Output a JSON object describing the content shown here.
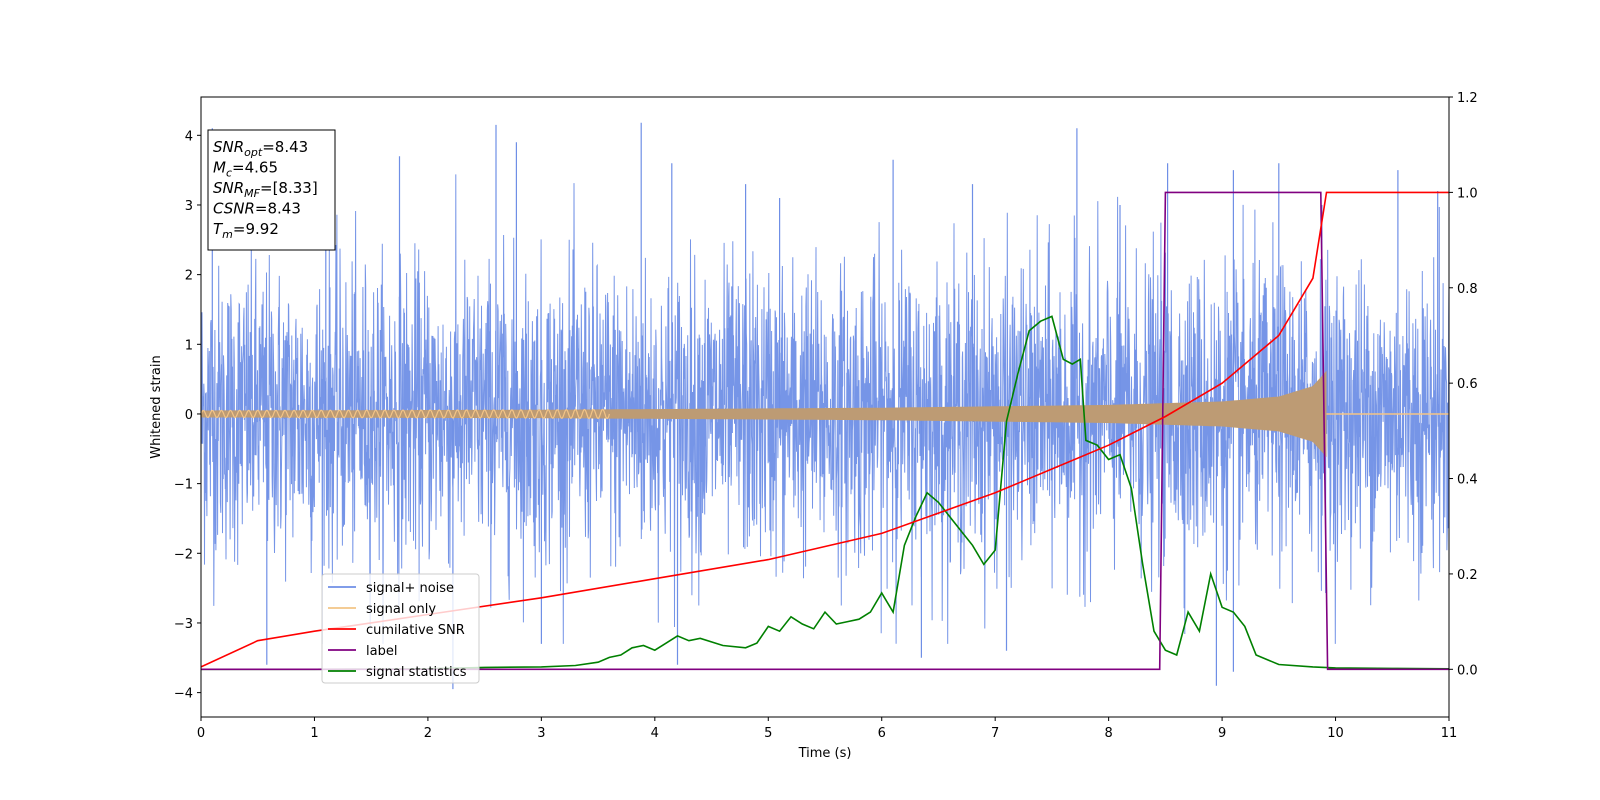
{
  "chart_data": {
    "type": "line",
    "xlabel": "Time (s)",
    "ylabel": "Whitened strain",
    "xlim": [
      0,
      11
    ],
    "ylim_left": [
      -4.35,
      4.55
    ],
    "ylim_right": [
      -0.1,
      1.2
    ],
    "xticks": [
      0,
      1,
      2,
      3,
      4,
      5,
      6,
      7,
      8,
      9,
      10,
      11
    ],
    "yticks_left": [
      -4,
      -3,
      -2,
      -1,
      0,
      1,
      2,
      3,
      4
    ],
    "yticks_right": [
      0.0,
      0.2,
      0.4,
      0.6,
      0.8,
      1.0,
      1.2
    ],
    "yticks_right_labels": [
      "0.0",
      "0.2",
      "0.4",
      "0.6",
      "0.8",
      "1.0",
      "1.2"
    ],
    "annotation": {
      "lines": [
        {
          "var": "SNR",
          "sub": "opt",
          "value": "=8.43"
        },
        {
          "var": "M",
          "sub": "c",
          "value": "=4.65"
        },
        {
          "var": "SNR",
          "sub": "MF",
          "value": "=[8.33]"
        },
        {
          "var": "CSNR",
          "sub": "",
          "value": "=8.43"
        },
        {
          "var": "T",
          "sub": "m",
          "value": "=9.92"
        }
      ]
    },
    "legend_placement": "lower-left",
    "series": [
      {
        "name": "signal+ noise",
        "axis": "left",
        "color": "#6f8fe6",
        "kind": "noise",
        "envelope_note": "dense noise, roughly within -3.9 to 4.2",
        "spikes": [
          [
            0.1,
            4.1
          ],
          [
            0.58,
            -3.6
          ],
          [
            1.1,
            3.1
          ],
          [
            1.75,
            3.7
          ],
          [
            2.22,
            -3.95
          ],
          [
            2.6,
            4.15
          ],
          [
            2.78,
            3.9
          ],
          [
            3.0,
            -3.3
          ],
          [
            3.88,
            4.18
          ],
          [
            4.15,
            3.6
          ],
          [
            4.2,
            -3.6
          ],
          [
            4.8,
            3.3
          ],
          [
            5.1,
            3.1
          ],
          [
            6.1,
            3.65
          ],
          [
            6.35,
            -3.5
          ],
          [
            6.8,
            3.3
          ],
          [
            7.1,
            -3.4
          ],
          [
            7.72,
            4.1
          ],
          [
            8.1,
            3.0
          ],
          [
            8.52,
            3.6
          ],
          [
            8.95,
            -3.9
          ],
          [
            9.1,
            3.5
          ],
          [
            9.1,
            -3.7
          ],
          [
            9.5,
            3.6
          ],
          [
            9.88,
            3.0
          ],
          [
            10.55,
            3.5
          ],
          [
            10.9,
            3.2
          ]
        ]
      },
      {
        "name": "signal only",
        "axis": "left",
        "color": "#f3c486",
        "kind": "chirp",
        "amplitude": [
          [
            0,
            0.05
          ],
          [
            3,
            0.06
          ],
          [
            6,
            0.09
          ],
          [
            8,
            0.13
          ],
          [
            9,
            0.18
          ],
          [
            9.5,
            0.25
          ],
          [
            9.8,
            0.4
          ],
          [
            9.92,
            0.62
          ],
          [
            9.93,
            0
          ]
        ]
      },
      {
        "name": "cumilative SNR",
        "axis": "right",
        "color": "#ff0000",
        "kind": "line",
        "points": [
          [
            0,
            0.005
          ],
          [
            0.5,
            0.06
          ],
          [
            1,
            0.08
          ],
          [
            2,
            0.115
          ],
          [
            3,
            0.15
          ],
          [
            4,
            0.19
          ],
          [
            5,
            0.23
          ],
          [
            6,
            0.285
          ],
          [
            7,
            0.37
          ],
          [
            7.5,
            0.42
          ],
          [
            8,
            0.47
          ],
          [
            8.5,
            0.53
          ],
          [
            9,
            0.6
          ],
          [
            9.5,
            0.7
          ],
          [
            9.8,
            0.82
          ],
          [
            9.92,
            1.0
          ],
          [
            11,
            1.0
          ]
        ]
      },
      {
        "name": "label",
        "axis": "right",
        "color": "#800080",
        "kind": "line",
        "points": [
          [
            0,
            0.0
          ],
          [
            8.45,
            0.0
          ],
          [
            8.5,
            1.0
          ],
          [
            9.87,
            1.0
          ],
          [
            9.93,
            0.0
          ],
          [
            11,
            0.0
          ]
        ]
      },
      {
        "name": "signal statistics",
        "axis": "right",
        "color": "#008000",
        "kind": "line",
        "points": [
          [
            0,
            0.0
          ],
          [
            1,
            0.0
          ],
          [
            2,
            0.001
          ],
          [
            2.5,
            0.004
          ],
          [
            3,
            0.005
          ],
          [
            3.3,
            0.008
          ],
          [
            3.5,
            0.015
          ],
          [
            3.6,
            0.025
          ],
          [
            3.7,
            0.03
          ],
          [
            3.8,
            0.045
          ],
          [
            3.9,
            0.05
          ],
          [
            4.0,
            0.04
          ],
          [
            4.1,
            0.055
          ],
          [
            4.2,
            0.07
          ],
          [
            4.3,
            0.06
          ],
          [
            4.4,
            0.065
          ],
          [
            4.6,
            0.05
          ],
          [
            4.8,
            0.045
          ],
          [
            4.9,
            0.055
          ],
          [
            5.0,
            0.09
          ],
          [
            5.1,
            0.08
          ],
          [
            5.2,
            0.11
          ],
          [
            5.3,
            0.095
          ],
          [
            5.4,
            0.085
          ],
          [
            5.5,
            0.12
          ],
          [
            5.6,
            0.095
          ],
          [
            5.7,
            0.1
          ],
          [
            5.8,
            0.105
          ],
          [
            5.9,
            0.12
          ],
          [
            6.0,
            0.16
          ],
          [
            6.1,
            0.12
          ],
          [
            6.2,
            0.26
          ],
          [
            6.3,
            0.32
          ],
          [
            6.4,
            0.37
          ],
          [
            6.5,
            0.35
          ],
          [
            6.6,
            0.32
          ],
          [
            6.7,
            0.29
          ],
          [
            6.8,
            0.26
          ],
          [
            6.9,
            0.22
          ],
          [
            7.0,
            0.25
          ],
          [
            7.1,
            0.52
          ],
          [
            7.2,
            0.62
          ],
          [
            7.3,
            0.71
          ],
          [
            7.4,
            0.73
          ],
          [
            7.5,
            0.74
          ],
          [
            7.6,
            0.65
          ],
          [
            7.68,
            0.64
          ],
          [
            7.75,
            0.65
          ],
          [
            7.8,
            0.48
          ],
          [
            7.9,
            0.47
          ],
          [
            8.0,
            0.44
          ],
          [
            8.1,
            0.45
          ],
          [
            8.2,
            0.38
          ],
          [
            8.3,
            0.22
          ],
          [
            8.4,
            0.08
          ],
          [
            8.5,
            0.04
          ],
          [
            8.6,
            0.03
          ],
          [
            8.7,
            0.12
          ],
          [
            8.8,
            0.08
          ],
          [
            8.9,
            0.2
          ],
          [
            9.0,
            0.13
          ],
          [
            9.1,
            0.12
          ],
          [
            9.2,
            0.09
          ],
          [
            9.3,
            0.03
          ],
          [
            9.5,
            0.01
          ],
          [
            9.8,
            0.005
          ],
          [
            10,
            0.003
          ],
          [
            10.5,
            0.002
          ],
          [
            11,
            0.001
          ]
        ]
      }
    ]
  }
}
